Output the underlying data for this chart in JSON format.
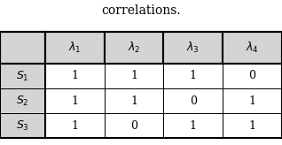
{
  "title": "correlations.",
  "col_headers": [
    "$\\lambda_1$",
    "$\\lambda_2$",
    "$\\lambda_3$",
    "$\\lambda_4$"
  ],
  "row_headers": [
    "$S_1$",
    "$S_2$",
    "$S_3$"
  ],
  "table_data": [
    [
      1,
      1,
      1,
      0
    ],
    [
      1,
      1,
      0,
      1
    ],
    [
      1,
      0,
      1,
      1
    ]
  ],
  "header_bg": "#d4d4d4",
  "row_header_bg": "#d4d4d4",
  "cell_bg": "#ffffff",
  "border_color": "#000000",
  "title_fontsize": 10,
  "header_fontsize": 9,
  "cell_fontsize": 9
}
